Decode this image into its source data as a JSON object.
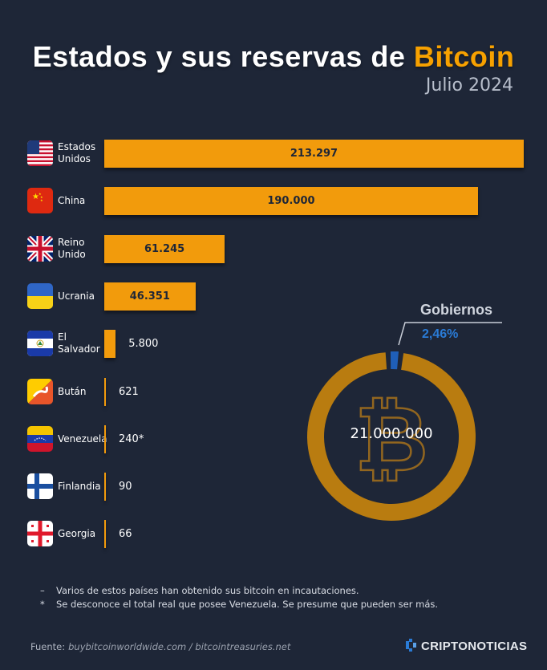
{
  "title": {
    "main": "Estados y sus reservas de ",
    "accent": "Bitcoin"
  },
  "subtitle": "Julio 2024",
  "chart_data": [
    {
      "type": "bar",
      "orientation": "horizontal",
      "categories": [
        "Estados Unidos",
        "China",
        "Reino Unido",
        "Ucrania",
        "El Salvador",
        "Bután",
        "Venezuela",
        "Finlandia",
        "Georgia"
      ],
      "values": [
        213297,
        190000,
        61245,
        46351,
        5800,
        621,
        240,
        90,
        66
      ],
      "value_labels": [
        "213.297",
        "190.000",
        "61.245",
        "46.351",
        "5.800",
        "621",
        "240",
        "90",
        "66"
      ],
      "annotations": {
        "Venezuela": "*"
      },
      "xlim": [
        0,
        213297
      ],
      "bar_color": "#f29b0c"
    },
    {
      "type": "pie",
      "style": "donut",
      "total_label": "21.000.000",
      "slices": [
        {
          "name": "Gobiernos",
          "value": 2.46,
          "label": "2,46%",
          "color": "#1f5fb8"
        },
        {
          "value": 97.54,
          "color": "#b97c10"
        }
      ]
    }
  ],
  "notes": [
    {
      "mark": "–",
      "text": "Varios de estos países han obtenido sus bitcoin en incautaciones."
    },
    {
      "mark": "*",
      "text": "Se desconoce el total real que posee Venezuela. Se presume que pueden ser más."
    }
  ],
  "source": {
    "label": "Fuente:",
    "text": "buybitcoinworldwide.com / bitcointreasuries.net"
  },
  "brand": "CRIPTONOTICIAS",
  "colors": {
    "background": "#1e2637",
    "accent": "#f7a100",
    "bar": "#f29b0c",
    "gov": "#2a7bd6"
  }
}
